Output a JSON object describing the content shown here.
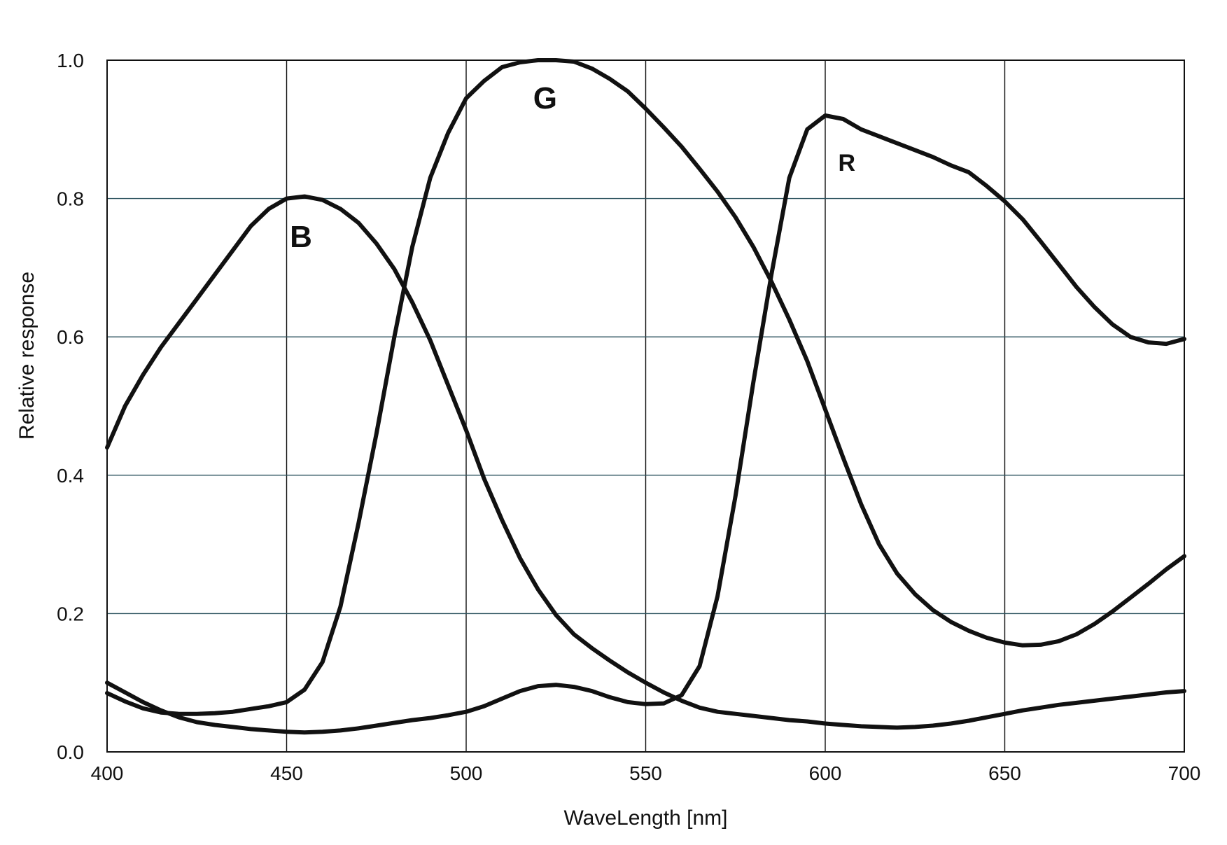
{
  "chart_data": {
    "type": "line",
    "xlabel": "WaveLength [nm]",
    "ylabel": "Relative response",
    "xlim": [
      400,
      700
    ],
    "ylim": [
      0.0,
      1.0
    ],
    "x_ticks": [
      400,
      450,
      500,
      550,
      600,
      650,
      700
    ],
    "x_tick_labels": [
      "400",
      "450",
      "500",
      "550",
      "600",
      "650",
      "700"
    ],
    "y_ticks": [
      0.0,
      0.2,
      0.4,
      0.6,
      0.8,
      1.0
    ],
    "y_tick_labels": [
      "0.0",
      "0.2",
      "0.4",
      "0.6",
      "0.8",
      "1.0"
    ],
    "grid": true,
    "colors": {
      "line": "#111111",
      "grid": "#2f5560",
      "frame": "#111111",
      "background": "#ffffff"
    },
    "annotations": [
      {
        "text": "B",
        "x": 454,
        "y": 0.73,
        "size": "large"
      },
      {
        "text": "G",
        "x": 522,
        "y": 0.93,
        "size": "large"
      },
      {
        "text": "R",
        "x": 606,
        "y": 0.84,
        "size": "small"
      }
    ],
    "series": [
      {
        "name": "B",
        "x": [
          400,
          405,
          410,
          415,
          420,
          425,
          430,
          435,
          440,
          445,
          450,
          455,
          460,
          465,
          470,
          475,
          480,
          485,
          490,
          495,
          500,
          505,
          510,
          515,
          520,
          525,
          530,
          535,
          540,
          545,
          550,
          555,
          560,
          565,
          570,
          575,
          580,
          585,
          590,
          595,
          600,
          605,
          610,
          615,
          620,
          625,
          630,
          635,
          640,
          645,
          650,
          655,
          660,
          665,
          670,
          675,
          680,
          685,
          690,
          695,
          700
        ],
        "y": [
          0.44,
          0.5,
          0.545,
          0.585,
          0.62,
          0.655,
          0.69,
          0.725,
          0.76,
          0.785,
          0.8,
          0.803,
          0.798,
          0.785,
          0.765,
          0.735,
          0.698,
          0.65,
          0.595,
          0.53,
          0.465,
          0.395,
          0.335,
          0.28,
          0.235,
          0.198,
          0.17,
          0.15,
          0.132,
          0.115,
          0.1,
          0.086,
          0.074,
          0.064,
          0.058,
          0.055,
          0.052,
          0.049,
          0.046,
          0.044,
          0.041,
          0.039,
          0.037,
          0.036,
          0.035,
          0.036,
          0.038,
          0.041,
          0.045,
          0.05,
          0.055,
          0.06,
          0.064,
          0.068,
          0.071,
          0.074,
          0.077,
          0.08,
          0.083,
          0.086,
          0.088
        ]
      },
      {
        "name": "G",
        "x": [
          400,
          405,
          410,
          415,
          420,
          425,
          430,
          435,
          440,
          445,
          450,
          455,
          460,
          465,
          470,
          475,
          480,
          485,
          490,
          495,
          500,
          505,
          510,
          515,
          520,
          525,
          530,
          535,
          540,
          545,
          550,
          555,
          560,
          565,
          570,
          575,
          580,
          585,
          590,
          595,
          600,
          605,
          610,
          615,
          620,
          625,
          630,
          635,
          640,
          645,
          650,
          655,
          660,
          665,
          670,
          675,
          680,
          685,
          690,
          695,
          700
        ],
        "y": [
          0.085,
          0.073,
          0.063,
          0.057,
          0.055,
          0.055,
          0.056,
          0.058,
          0.062,
          0.066,
          0.072,
          0.09,
          0.13,
          0.21,
          0.33,
          0.46,
          0.6,
          0.73,
          0.83,
          0.895,
          0.945,
          0.97,
          0.99,
          0.997,
          1.0,
          1.0,
          0.998,
          0.988,
          0.973,
          0.955,
          0.93,
          0.903,
          0.875,
          0.843,
          0.81,
          0.773,
          0.73,
          0.68,
          0.625,
          0.565,
          0.495,
          0.425,
          0.358,
          0.3,
          0.258,
          0.228,
          0.205,
          0.188,
          0.175,
          0.165,
          0.158,
          0.154,
          0.155,
          0.16,
          0.17,
          0.185,
          0.203,
          0.223,
          0.243,
          0.264,
          0.283
        ]
      },
      {
        "name": "R",
        "x": [
          400,
          405,
          410,
          415,
          420,
          425,
          430,
          435,
          440,
          445,
          450,
          455,
          460,
          465,
          470,
          475,
          480,
          485,
          490,
          495,
          500,
          505,
          510,
          515,
          520,
          525,
          530,
          535,
          540,
          545,
          550,
          555,
          560,
          565,
          570,
          575,
          580,
          585,
          590,
          595,
          600,
          605,
          610,
          615,
          620,
          625,
          630,
          635,
          640,
          645,
          650,
          655,
          660,
          665,
          670,
          675,
          680,
          685,
          690,
          695,
          700
        ],
        "y": [
          0.1,
          0.086,
          0.072,
          0.06,
          0.05,
          0.043,
          0.039,
          0.036,
          0.033,
          0.031,
          0.029,
          0.028,
          0.029,
          0.031,
          0.034,
          0.038,
          0.042,
          0.046,
          0.049,
          0.053,
          0.058,
          0.066,
          0.077,
          0.088,
          0.095,
          0.097,
          0.094,
          0.088,
          0.079,
          0.072,
          0.069,
          0.07,
          0.082,
          0.124,
          0.225,
          0.37,
          0.535,
          0.69,
          0.83,
          0.9,
          0.92,
          0.915,
          0.9,
          0.89,
          0.88,
          0.87,
          0.86,
          0.848,
          0.838,
          0.818,
          0.796,
          0.77,
          0.738,
          0.705,
          0.672,
          0.643,
          0.618,
          0.6,
          0.592,
          0.59,
          0.597
        ]
      }
    ]
  }
}
